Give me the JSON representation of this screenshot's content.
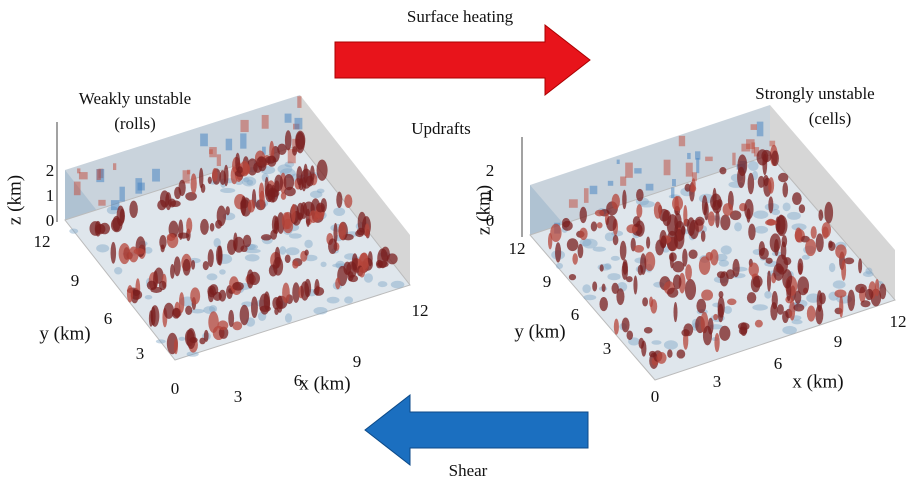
{
  "arrows": {
    "top": "Surface heating",
    "bottom": "Shear"
  },
  "annotation": "Updrafts",
  "panels": [
    {
      "title": "Weakly unstable",
      "subtitle": "(rolls)",
      "z_label": "z (km)",
      "y_label": "y (km)",
      "x_label": "x (km)",
      "z_ticks": [
        "2",
        "1",
        "0"
      ],
      "y_ticks": [
        "12",
        "9",
        "6",
        "3",
        "0"
      ],
      "x_ticks": [
        "3",
        "6",
        "9",
        "12"
      ]
    },
    {
      "title": "Strongly unstable",
      "subtitle": "(cells)",
      "z_label": "z (km)",
      "y_label": "y (km)",
      "x_label": "x (km)",
      "z_ticks": [
        "2",
        "1",
        "0"
      ],
      "y_ticks": [
        "12",
        "9",
        "6",
        "3",
        "0"
      ],
      "x_ticks": [
        "3",
        "6",
        "9",
        "12"
      ]
    }
  ]
}
